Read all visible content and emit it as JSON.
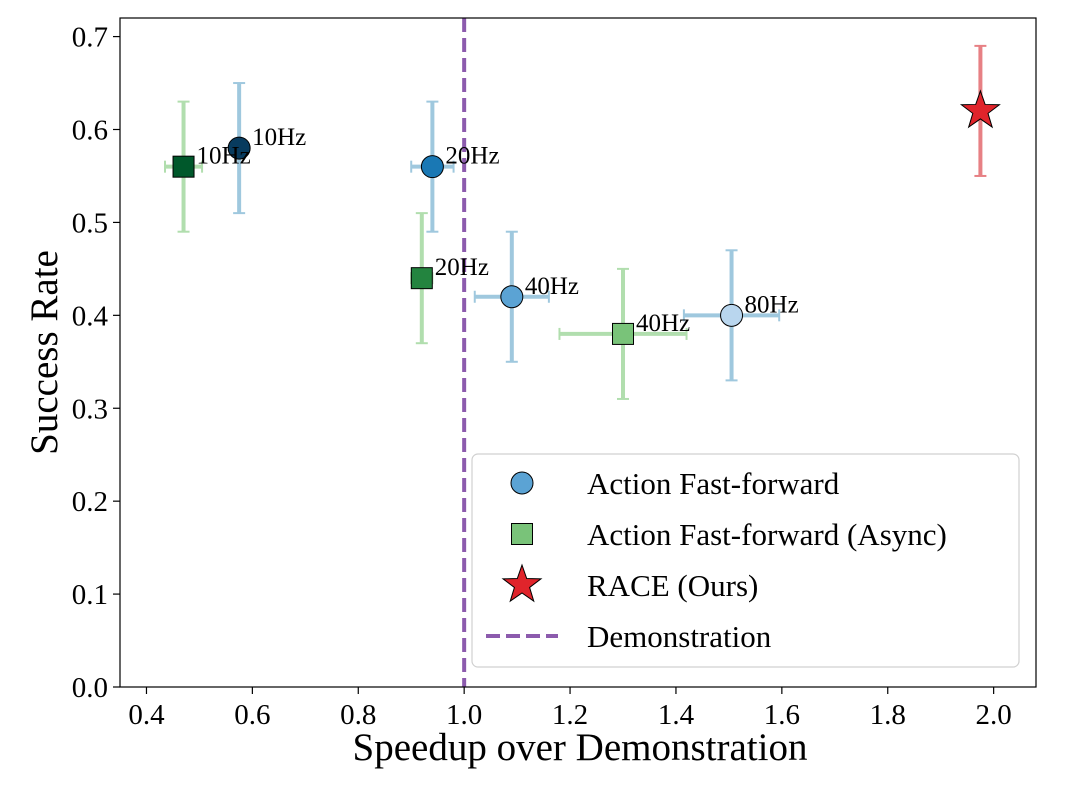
{
  "chart_data": {
    "type": "scatter",
    "xlabel": "Speedup over Demonstration",
    "ylabel": "Success Rate",
    "xlim": [
      0.35,
      2.08
    ],
    "ylim": [
      0.0,
      0.72
    ],
    "xticks": [
      "0.4",
      "0.6",
      "0.8",
      "1.0",
      "1.2",
      "1.4",
      "1.6",
      "1.8",
      "2.0"
    ],
    "yticks": [
      "0.0",
      "0.1",
      "0.2",
      "0.3",
      "0.4",
      "0.5",
      "0.6",
      "0.7"
    ],
    "grid": false,
    "legend_position": "lower-right",
    "reference_line": {
      "x": 1.0,
      "label": "Demonstration",
      "color": "#8c5bad",
      "style": "dashed"
    },
    "series": [
      {
        "name": "Action Fast-forward",
        "marker": "circle",
        "legend_color": "#5ba3d4",
        "errorbar_color": "#8fbfd9",
        "points": [
          {
            "x": 0.575,
            "y": 0.58,
            "xerr": 0.01,
            "yerr": 0.07,
            "label": "10Hz",
            "color": "#083b5e"
          },
          {
            "x": 0.94,
            "y": 0.56,
            "xerr": 0.04,
            "yerr": 0.07,
            "label": "20Hz",
            "color": "#1a78b4"
          },
          {
            "x": 1.09,
            "y": 0.42,
            "xerr": 0.07,
            "yerr": 0.07,
            "label": "40Hz",
            "color": "#5ba3d4"
          },
          {
            "x": 1.505,
            "y": 0.4,
            "xerr": 0.09,
            "yerr": 0.07,
            "label": "80Hz",
            "color": "#b9d6ee"
          }
        ]
      },
      {
        "name": "Action Fast-forward (Async)",
        "marker": "square",
        "legend_color": "#79c379",
        "errorbar_color": "#a4d9a0",
        "points": [
          {
            "x": 0.47,
            "y": 0.56,
            "xerr": 0.035,
            "yerr": 0.07,
            "label": "10Hz",
            "color": "#00582b"
          },
          {
            "x": 0.92,
            "y": 0.44,
            "xerr": 0.02,
            "yerr": 0.07,
            "label": "20Hz",
            "color": "#23843f"
          },
          {
            "x": 1.3,
            "y": 0.38,
            "xerr": 0.12,
            "yerr": 0.07,
            "label": "40Hz",
            "color": "#79c379"
          }
        ]
      },
      {
        "name": "RACE (Ours)",
        "marker": "star",
        "legend_color": "#e0242b",
        "errorbar_color": "#e36b6f",
        "points": [
          {
            "x": 1.975,
            "y": 0.62,
            "xerr": 0.01,
            "yerr": 0.07,
            "label": "",
            "color": "#e0242b"
          }
        ]
      }
    ],
    "legend": [
      {
        "label": "Action Fast-forward",
        "marker": "circle",
        "color": "#5ba3d4"
      },
      {
        "label": "Action Fast-forward (Async)",
        "marker": "square",
        "color": "#79c379"
      },
      {
        "label": "RACE (Ours)",
        "marker": "star",
        "color": "#e0242b"
      },
      {
        "label": "Demonstration",
        "marker": "dashed-line",
        "color": "#8c5bad"
      }
    ]
  }
}
